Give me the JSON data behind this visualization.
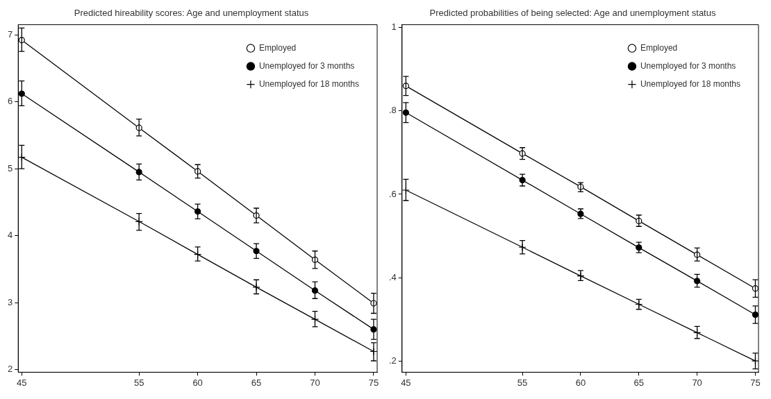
{
  "chart_data": [
    {
      "type": "line",
      "title": "Predicted hireability scores: Age and unemployment status",
      "x": [
        45,
        55,
        60,
        65,
        70,
        75
      ],
      "xlim": [
        44.7,
        75.3
      ],
      "xticks": [
        45,
        55,
        60,
        65,
        70,
        75
      ],
      "ylim": [
        1.96,
        7.15
      ],
      "yticks": [
        2,
        3,
        4,
        5,
        6,
        7
      ],
      "grid": false,
      "legend": "top right",
      "line_style": "solid",
      "series": [
        {
          "name": "Employed",
          "color": "#000000",
          "marker": "circle",
          "values": [
            6.92,
            5.61,
            4.96,
            4.3,
            3.64,
            2.99
          ],
          "errors": [
            [
              6.75,
              7.1
            ],
            [
              5.49,
              5.74
            ],
            [
              4.86,
              5.06
            ],
            [
              4.19,
              4.41
            ],
            [
              3.51,
              3.77
            ],
            [
              2.84,
              3.14
            ]
          ]
        },
        {
          "name": "Unemployed for 3 months",
          "color": "#000000",
          "marker": "circle",
          "values": [
            6.12,
            4.95,
            4.36,
            3.77,
            3.18,
            2.6
          ],
          "errors": [
            [
              5.94,
              6.31
            ],
            [
              4.83,
              5.07
            ],
            [
              4.25,
              4.47
            ],
            [
              3.66,
              3.88
            ],
            [
              3.06,
              3.31
            ],
            [
              2.45,
              2.75
            ]
          ]
        },
        {
          "name": "Unemployed for 18 months",
          "color": "#000000",
          "marker": "cross",
          "values": [
            5.17,
            4.21,
            3.72,
            3.23,
            2.75,
            2.27
          ],
          "errors": [
            [
              5.0,
              5.35
            ],
            [
              4.08,
              4.33
            ],
            [
              3.62,
              3.83
            ],
            [
              3.13,
              3.34
            ],
            [
              2.64,
              2.87
            ],
            [
              2.13,
              2.4
            ]
          ]
        }
      ]
    },
    {
      "type": "line",
      "title": "Predicted probabilities of being selected: Age and unemployment status",
      "x": [
        45,
        55,
        60,
        65,
        70,
        75
      ],
      "xlim": [
        44.67,
        75.27
      ],
      "xticks": [
        45,
        55,
        60,
        65,
        70,
        75
      ],
      "ylim": [
        0.173,
        1.007
      ],
      "yticks": [
        {
          "value": 0.2,
          "label": ".2"
        },
        {
          "value": 0.4,
          "label": ".4"
        },
        {
          "value": 0.6,
          "label": ".6"
        },
        {
          "value": 0.8,
          "label": ".8"
        },
        {
          "value": 1,
          "label": "1"
        }
      ],
      "grid": false,
      "legend": "top right",
      "line_style": "solid",
      "series": [
        {
          "name": "Employed",
          "color": "#000000",
          "marker": "circle",
          "values": [
            0.86,
            0.698,
            0.618,
            0.536,
            0.455,
            0.374
          ],
          "errors": [
            [
              0.837,
              0.883
            ],
            [
              0.684,
              0.712
            ],
            [
              0.606,
              0.628
            ],
            [
              0.523,
              0.55
            ],
            [
              0.44,
              0.471
            ],
            [
              0.353,
              0.395
            ]
          ]
        },
        {
          "name": "Unemployed for 3 months",
          "color": "#000000",
          "marker": "circle",
          "values": [
            0.796,
            0.634,
            0.553,
            0.472,
            0.392,
            0.311
          ],
          "errors": [
            [
              0.772,
              0.82
            ],
            [
              0.62,
              0.648
            ],
            [
              0.542,
              0.565
            ],
            [
              0.46,
              0.485
            ],
            [
              0.377,
              0.408
            ],
            [
              0.29,
              0.332
            ]
          ]
        },
        {
          "name": "Unemployed for 18 months",
          "color": "#000000",
          "marker": "cross",
          "values": [
            0.61,
            0.473,
            0.404,
            0.336,
            0.268,
            0.2
          ],
          "errors": [
            [
              0.585,
              0.636
            ],
            [
              0.457,
              0.489
            ],
            [
              0.393,
              0.417
            ],
            [
              0.324,
              0.348
            ],
            [
              0.254,
              0.283
            ],
            [
              0.181,
              0.219
            ]
          ]
        }
      ]
    }
  ]
}
